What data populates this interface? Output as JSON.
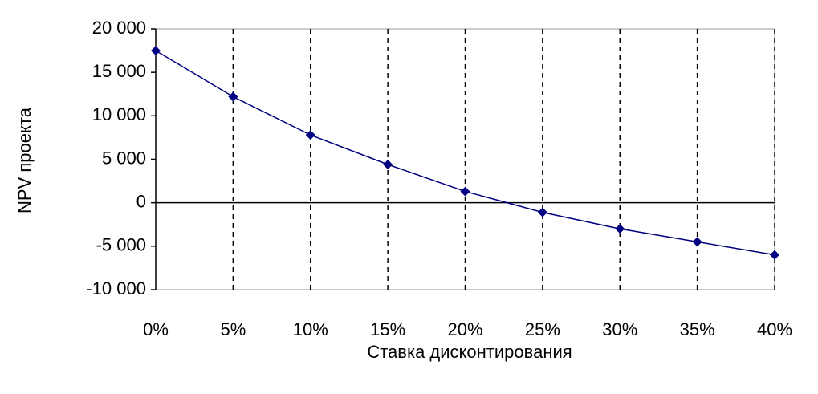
{
  "chart_data": {
    "type": "line",
    "x_label": "Ставка дисконтирования",
    "y_label": "NPV проекта",
    "categories": [
      "0%",
      "5%",
      "10%",
      "15%",
      "20%",
      "25%",
      "30%",
      "35%",
      "40%"
    ],
    "values": [
      17500,
      12200,
      7800,
      4400,
      1300,
      -1100,
      -3000,
      -4500,
      -6000
    ],
    "color": "#000080",
    "ylim": [
      -10000,
      20000
    ],
    "yticks": [
      {
        "value": -10000,
        "label": "-10 000"
      },
      {
        "value": -5000,
        "label": "-5 000"
      },
      0,
      {
        "value": 5000,
        "label": "5 000"
      },
      {
        "value": 10000,
        "label": "10 000"
      },
      {
        "value": 15000,
        "label": "15 000"
      },
      {
        "value": 20000,
        "label": "20 000"
      }
    ],
    "negative_tick_color": "#ff0000",
    "x_grid": true
  }
}
